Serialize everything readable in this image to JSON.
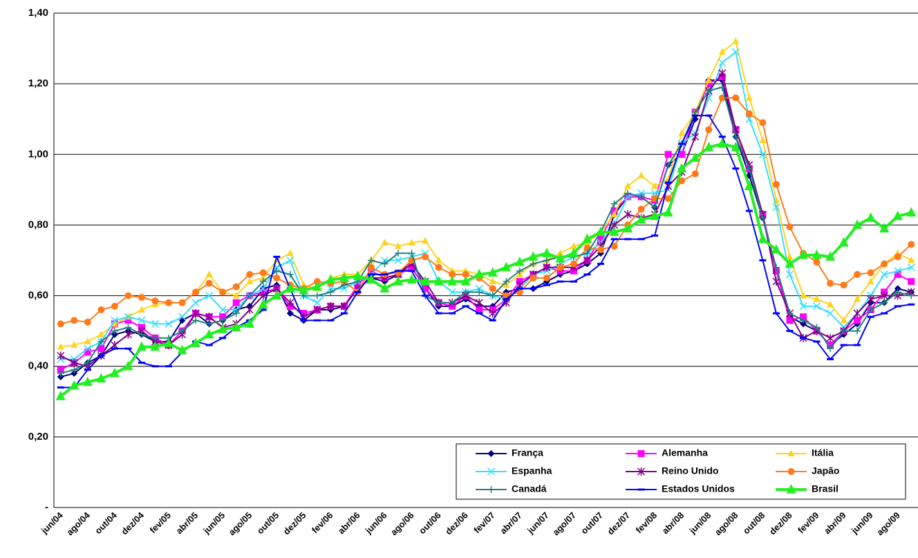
{
  "chart_data": {
    "type": "line",
    "categories": [
      "jun/04",
      null,
      "ago/04",
      null,
      "out/04",
      null,
      "dez/04",
      null,
      "fev/05",
      null,
      "abr/05",
      null,
      "jun/05",
      null,
      "ago/05",
      null,
      "out/05",
      null,
      "dez/05",
      null,
      "fev/06",
      null,
      "abr/06",
      null,
      "jun/06",
      null,
      "ago/06",
      null,
      "out/06",
      null,
      "dez/06",
      null,
      "fev/07",
      null,
      "abr/07",
      null,
      "jun/07",
      null,
      "ago/07",
      null,
      "out/07",
      null,
      "dez/07",
      null,
      "fev/08",
      null,
      "abr/08",
      null,
      "jun/08",
      null,
      "ago/08",
      null,
      "out/08",
      null,
      "dez/08",
      null,
      "fev/09",
      null,
      "abr/09",
      null,
      "jun/09",
      null,
      "ago/09",
      null
    ],
    "ylim": [
      0,
      1.4
    ],
    "yticks": [
      {
        "value": 0,
        "label": "-"
      },
      {
        "value": 0.2,
        "label": "0,20"
      },
      {
        "value": 0.4,
        "label": "0,40"
      },
      {
        "value": 0.6,
        "label": "0,60"
      },
      {
        "value": 0.8,
        "label": "0,80"
      },
      {
        "value": 1.0,
        "label": "1,00"
      },
      {
        "value": 1.2,
        "label": "1,20"
      },
      {
        "value": 1.4,
        "label": "1,40"
      }
    ],
    "grid": true,
    "legend": "lower right",
    "series": [
      {
        "name": "França",
        "color": "#000080",
        "marker": "diamond",
        "line_width": 2,
        "values": [
          0.37,
          0.38,
          0.41,
          0.43,
          0.49,
          0.5,
          0.49,
          0.47,
          0.47,
          0.53,
          0.55,
          0.52,
          0.53,
          0.56,
          0.57,
          0.62,
          0.63,
          0.55,
          0.53,
          0.56,
          0.56,
          0.57,
          0.62,
          0.65,
          0.64,
          0.66,
          0.7,
          0.62,
          0.57,
          0.57,
          0.59,
          0.57,
          0.57,
          0.61,
          0.62,
          0.62,
          0.64,
          0.66,
          0.67,
          0.69,
          0.72,
          0.83,
          0.88,
          0.88,
          0.85,
          0.97,
          1.0,
          1.1,
          1.21,
          1.21,
          1.05,
          0.94,
          0.82,
          0.67,
          0.54,
          0.52,
          0.5,
          0.46,
          0.49,
          0.52,
          0.58,
          0.58,
          0.62,
          0.61
        ]
      },
      {
        "name": "Alemanha",
        "color": "#ff00ff",
        "marker": "square",
        "line_width": 2,
        "values": [
          0.39,
          0.41,
          0.44,
          0.45,
          0.52,
          0.53,
          0.51,
          0.48,
          0.46,
          0.5,
          0.55,
          0.54,
          0.54,
          0.58,
          0.6,
          0.61,
          0.62,
          0.57,
          0.55,
          0.56,
          0.57,
          0.57,
          0.63,
          0.67,
          0.65,
          0.66,
          0.68,
          0.62,
          0.58,
          0.57,
          0.6,
          0.56,
          0.56,
          0.59,
          0.64,
          0.66,
          0.68,
          0.67,
          0.67,
          0.7,
          0.76,
          0.84,
          0.88,
          0.88,
          0.87,
          1.0,
          1.0,
          1.12,
          1.2,
          1.22,
          1.07,
          0.96,
          0.83,
          0.67,
          0.53,
          0.54,
          0.5,
          0.46,
          0.5,
          0.53,
          0.56,
          0.61,
          0.66,
          0.64
        ]
      },
      {
        "name": "Itália",
        "color": "#ffd21e",
        "marker": "triangle",
        "line_width": 2,
        "values": [
          0.455,
          0.46,
          0.47,
          0.49,
          0.52,
          0.54,
          0.56,
          0.575,
          0.58,
          0.58,
          0.61,
          0.66,
          0.61,
          0.6,
          0.64,
          0.65,
          0.7,
          0.72,
          0.63,
          0.62,
          0.65,
          0.66,
          0.66,
          0.7,
          0.75,
          0.74,
          0.75,
          0.755,
          0.7,
          0.67,
          0.67,
          0.66,
          0.64,
          0.63,
          0.66,
          0.69,
          0.7,
          0.72,
          0.74,
          0.75,
          0.78,
          0.83,
          0.91,
          0.94,
          0.91,
          0.93,
          1.06,
          1.12,
          1.21,
          1.29,
          1.32,
          1.16,
          1.04,
          0.87,
          0.71,
          0.6,
          0.59,
          0.575,
          0.53,
          0.59,
          0.64,
          0.69,
          0.72,
          0.7
        ]
      },
      {
        "name": "Espanha",
        "color": "#33ddff",
        "marker": "x",
        "line_width": 2,
        "values": [
          0.42,
          0.42,
          0.45,
          0.47,
          0.53,
          0.54,
          0.53,
          0.52,
          0.52,
          0.54,
          0.58,
          0.6,
          0.56,
          0.56,
          0.6,
          0.62,
          0.68,
          0.7,
          0.6,
          0.58,
          0.62,
          0.62,
          0.64,
          0.66,
          0.7,
          0.7,
          0.71,
          0.72,
          0.64,
          0.61,
          0.61,
          0.62,
          0.6,
          0.59,
          0.62,
          0.66,
          0.67,
          0.69,
          0.71,
          0.72,
          0.75,
          0.8,
          0.88,
          0.89,
          0.89,
          0.9,
          1.03,
          1.06,
          1.16,
          1.26,
          1.29,
          1.1,
          1.0,
          0.85,
          0.66,
          0.57,
          0.57,
          0.55,
          0.51,
          0.55,
          0.6,
          0.66,
          0.67,
          0.68
        ]
      },
      {
        "name": "Reino Unido",
        "color": "#800080",
        "marker": "star",
        "line_width": 2,
        "values": [
          0.43,
          0.41,
          0.4,
          0.43,
          0.46,
          0.49,
          0.5,
          0.47,
          0.46,
          0.49,
          0.55,
          0.54,
          0.51,
          0.52,
          0.56,
          0.6,
          0.62,
          0.58,
          0.54,
          0.56,
          0.57,
          0.57,
          0.62,
          0.65,
          0.65,
          0.66,
          0.69,
          0.64,
          0.58,
          0.58,
          0.6,
          0.58,
          0.55,
          0.58,
          0.63,
          0.66,
          0.68,
          0.68,
          0.68,
          0.7,
          0.74,
          0.8,
          0.83,
          0.82,
          0.83,
          0.91,
          0.95,
          1.05,
          1.18,
          1.23,
          1.07,
          0.97,
          0.83,
          0.64,
          0.55,
          0.48,
          0.5,
          0.48,
          0.5,
          0.55,
          0.59,
          0.6,
          0.6,
          0.61
        ]
      },
      {
        "name": "Japão",
        "color": "#ff7a1a",
        "marker": "circle",
        "line_width": 2,
        "values": [
          0.52,
          0.53,
          0.525,
          0.56,
          0.57,
          0.6,
          0.595,
          0.585,
          0.58,
          0.58,
          0.61,
          0.635,
          0.61,
          0.625,
          0.66,
          0.665,
          0.65,
          0.63,
          0.62,
          0.64,
          0.635,
          0.64,
          0.61,
          0.68,
          0.66,
          0.665,
          0.7,
          0.71,
          0.68,
          0.66,
          0.66,
          0.65,
          0.62,
          0.6,
          0.61,
          0.65,
          0.65,
          0.68,
          0.69,
          0.735,
          0.73,
          0.74,
          0.8,
          0.845,
          0.875,
          0.875,
          0.925,
          0.945,
          1.07,
          1.16,
          1.16,
          1.115,
          1.09,
          0.915,
          0.795,
          0.72,
          0.695,
          0.635,
          0.63,
          0.66,
          0.665,
          0.69,
          0.71,
          0.745
        ]
      },
      {
        "name": "Canadá",
        "color": "#1f7f7f",
        "marker": "plus",
        "line_width": 2,
        "values": [
          0.38,
          0.39,
          0.41,
          0.47,
          0.5,
          0.51,
          0.49,
          0.48,
          0.48,
          0.5,
          0.53,
          0.52,
          0.53,
          0.55,
          0.6,
          0.64,
          0.67,
          0.66,
          0.6,
          0.6,
          0.61,
          0.63,
          0.64,
          0.7,
          0.69,
          0.72,
          0.72,
          0.6,
          0.58,
          0.58,
          0.61,
          0.61,
          0.6,
          0.64,
          0.67,
          0.69,
          0.7,
          0.71,
          0.71,
          0.72,
          0.78,
          0.86,
          0.89,
          0.88,
          0.85,
          0.97,
          1.03,
          1.12,
          1.18,
          1.19,
          1.05,
          0.96,
          0.82,
          0.68,
          0.55,
          0.53,
          0.51,
          0.45,
          0.5,
          0.5,
          0.56,
          0.58,
          0.61,
          0.6
        ]
      },
      {
        "name": "Estados Unidos",
        "color": "#0000ff",
        "marker": "dash",
        "line_width": 2,
        "values": [
          0.34,
          0.34,
          0.39,
          0.43,
          0.45,
          0.45,
          0.41,
          0.4,
          0.4,
          0.44,
          0.47,
          0.46,
          0.48,
          0.51,
          0.53,
          0.56,
          0.71,
          0.62,
          0.53,
          0.53,
          0.53,
          0.55,
          0.61,
          0.66,
          0.66,
          0.67,
          0.67,
          0.6,
          0.55,
          0.55,
          0.57,
          0.55,
          0.53,
          0.59,
          0.62,
          0.62,
          0.63,
          0.64,
          0.64,
          0.66,
          0.69,
          0.76,
          0.76,
          0.76,
          0.77,
          0.92,
          1.03,
          1.11,
          1.11,
          1.05,
          0.96,
          0.84,
          0.7,
          0.55,
          0.5,
          0.48,
          0.47,
          0.42,
          0.46,
          0.46,
          0.54,
          0.55,
          0.57,
          0.575
        ]
      },
      {
        "name": "Brasil",
        "color": "#22ee22",
        "marker": "triangle",
        "line_width": 4,
        "values": [
          0.315,
          0.345,
          0.355,
          0.365,
          0.38,
          0.4,
          0.455,
          0.455,
          0.465,
          0.445,
          0.465,
          0.49,
          0.505,
          0.51,
          0.52,
          0.575,
          0.6,
          0.62,
          0.615,
          0.625,
          0.645,
          0.65,
          0.655,
          0.645,
          0.62,
          0.64,
          0.645,
          0.64,
          0.64,
          0.64,
          0.64,
          0.66,
          0.665,
          0.68,
          0.695,
          0.71,
          0.72,
          0.705,
          0.72,
          0.76,
          0.78,
          0.78,
          0.79,
          0.815,
          0.825,
          0.835,
          0.96,
          0.99,
          1.02,
          1.03,
          1.02,
          0.91,
          0.76,
          0.73,
          0.69,
          0.715,
          0.715,
          0.71,
          0.75,
          0.8,
          0.82,
          0.79,
          0.825,
          0.835
        ]
      }
    ]
  }
}
